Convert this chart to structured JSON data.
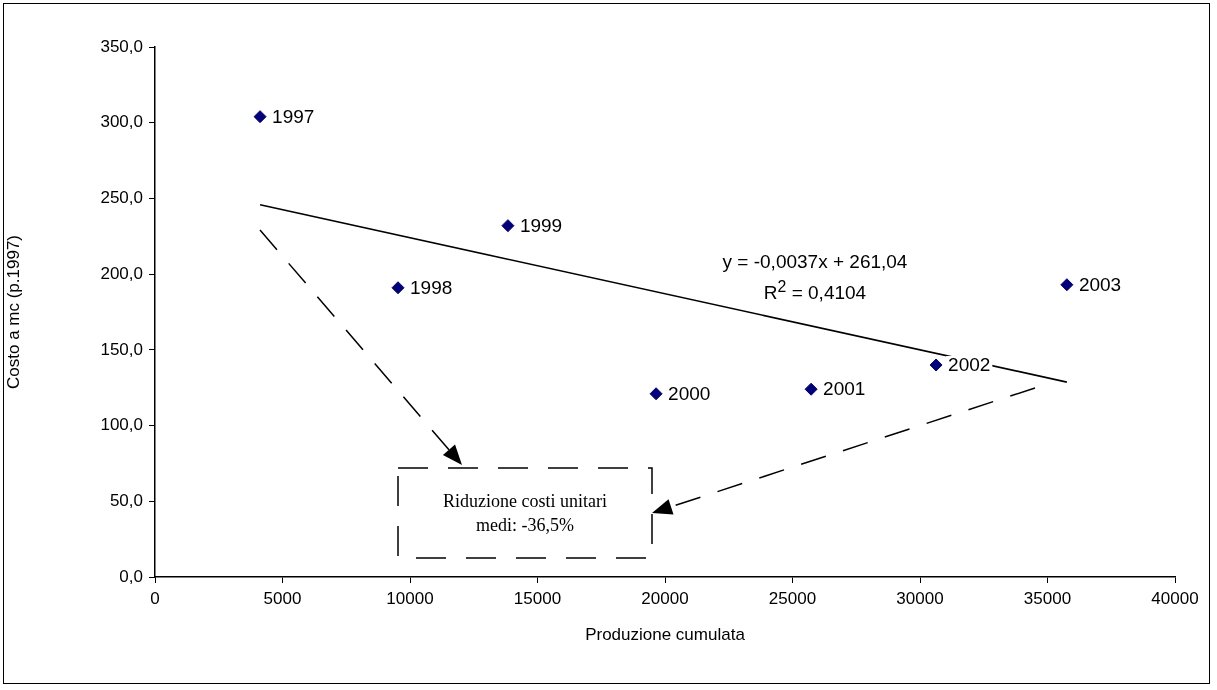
{
  "chart_data": {
    "type": "scatter",
    "xlabel": "Produzione cumulata",
    "ylabel": "Costo a mc (p.1997)",
    "xlim": [
      0,
      40000
    ],
    "xticks": [
      0,
      5000,
      10000,
      15000,
      20000,
      25000,
      30000,
      35000,
      40000
    ],
    "ylim": [
      0,
      350
    ],
    "yticks": [
      {
        "value": 0,
        "label": "0,0"
      },
      {
        "value": 50,
        "label": "50,0"
      },
      {
        "value": 100,
        "label": "100,0"
      },
      {
        "value": 150,
        "label": "150,0"
      },
      {
        "value": 200,
        "label": "200,0"
      },
      {
        "value": 250,
        "label": "250,0"
      },
      {
        "value": 300,
        "label": "300,0"
      },
      {
        "value": 350,
        "label": "350,0"
      }
    ],
    "marker": "diamond",
    "series": [
      {
        "color": "#000080",
        "x": [
          4120,
          9530,
          13840,
          19650,
          25730,
          30630,
          35760
        ],
        "values": [
          304,
          191,
          232,
          121,
          124,
          140,
          193
        ]
      },
      {
        "type": "line",
        "color": "#000000",
        "marker": "none",
        "line_style": "solid",
        "x": [
          4120,
          35760
        ],
        "values": [
          245.8,
          128.7
        ]
      }
    ],
    "annotations": [
      "y = -0,0037x + 261,04",
      "R$^{2}$ = 0,4104",
      "Riduzione costi unitari medi: -36,5%",
      {
        "text": "1997",
        "x": 4120,
        "y": 304
      },
      {
        "text": "1998",
        "x": 9530,
        "y": 191
      },
      {
        "text": "1999",
        "x": 13840,
        "y": 232
      },
      {
        "text": "2000",
        "x": 19650,
        "y": 121
      },
      {
        "text": "2001",
        "x": 25730,
        "y": 124
      },
      {
        "text": "2002",
        "x": 30630,
        "y": 140
      },
      {
        "text": "2003",
        "x": 35760,
        "y": 193
      }
    ]
  }
}
